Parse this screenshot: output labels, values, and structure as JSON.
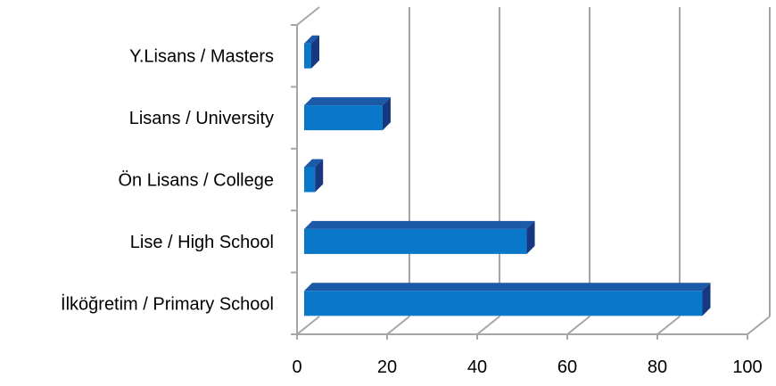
{
  "chart_data": {
    "type": "bar",
    "orientation": "horizontal",
    "style": "3d",
    "categories": [
      "İlköğretim / Primary School",
      "Lise / High School",
      "Ön Lisans / College",
      "Lisans / University",
      "Y.Lisans / Masters"
    ],
    "values": [
      90,
      51,
      4,
      19,
      2
    ],
    "xlim": [
      0,
      100
    ],
    "xticks": [
      "0",
      "20",
      "40",
      "60",
      "80",
      "100"
    ],
    "grid": true,
    "legend": "none",
    "colors": {
      "bar_front": "#0a78c8",
      "bar_top": "#1c5aa8",
      "bar_side": "#17377f",
      "grid": "#a6a6a6"
    }
  }
}
